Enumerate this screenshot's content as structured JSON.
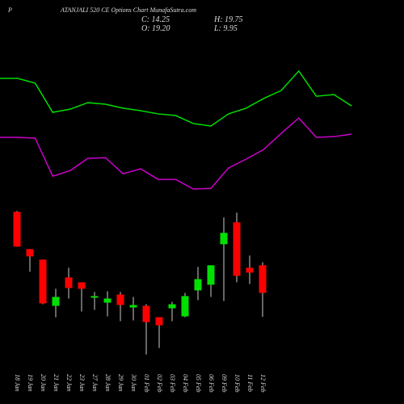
{
  "chart_data": [
    {
      "type": "candlestick",
      "title_prefix": "P",
      "title": "ATANJALI 520 CE Options Chart MunafaSutra.com",
      "ohlc_labels": [
        "C: 14.25",
        "H: 19.75",
        "O: 19.20",
        "L: 9.95"
      ],
      "categories": [
        "18 Jan",
        "19 Jan",
        "20 Jan",
        "21 Jan",
        "22 Jan",
        "23 Jan",
        "27 Jan",
        "28 Jan",
        "29 Jan",
        "30 Jan",
        "01 Feb",
        "02 Feb",
        "03 Feb",
        "04 Feb",
        "05 Feb",
        "06 Feb",
        "09 Feb",
        "10 Feb",
        "11 Feb",
        "12 Feb"
      ],
      "open": [
        28.8,
        22.11,
        20.22,
        11.92,
        17.02,
        16.14,
        13.38,
        12.5,
        13.96,
        11.63,
        11.92,
        9.88,
        11.48,
        10.03,
        14.69,
        15.71,
        22.98,
        26.91,
        18.76,
        19.2
      ],
      "high": [
        28.95,
        22.11,
        20.22,
        14.98,
        18.76,
        16.14,
        14.4,
        14.54,
        14.4,
        13.52,
        12.21,
        9.88,
        12.65,
        14.25,
        18.91,
        19.2,
        27.79,
        28.66,
        20.95,
        19.75
      ],
      "low": [
        22.55,
        18.03,
        12.21,
        9.88,
        13.23,
        10.9,
        11.19,
        10.03,
        9.16,
        9.3,
        3.19,
        4.35,
        9.16,
        9.88,
        12.94,
        13.52,
        12.79,
        16.14,
        15.85,
        9.95
      ],
      "close": [
        22.55,
        20.8,
        12.36,
        13.52,
        15.12,
        14.98,
        13.67,
        13.23,
        12.07,
        12.07,
        9.01,
        8.43,
        12.21,
        13.67,
        16.72,
        19.2,
        25.02,
        17.31,
        17.89,
        14.25
      ],
      "up_color": "#00e000",
      "down_color": "#ff0000",
      "ylim": [
        3,
        31
      ]
    },
    {
      "type": "line",
      "categories": [
        null,
        null,
        null,
        null,
        null,
        null,
        null,
        null,
        null,
        null,
        null,
        null,
        null,
        null,
        null,
        null,
        null,
        null,
        null,
        null,
        null
      ],
      "series": [
        {
          "color": "#00dd00",
          "values": [
            80.5,
            80.5,
            77.4,
            58.4,
            60.5,
            64.7,
            63.7,
            61.1,
            59.5,
            57.4,
            56.3,
            51.1,
            49.5,
            57.4,
            61.1,
            67.4,
            72.6,
            85.3,
            68.9,
            70,
            62.6
          ]
        },
        {
          "color": "#cc00cc",
          "values": [
            42.1,
            42.1,
            41.6,
            16.8,
            20.5,
            28.4,
            28.9,
            18.4,
            21.6,
            14.7,
            14.7,
            8.4,
            8.9,
            22.1,
            27.9,
            34.2,
            44.7,
            54.7,
            42.1,
            42.6,
            44.2
          ]
        }
      ],
      "ylim": [
        0,
        100
      ]
    }
  ]
}
